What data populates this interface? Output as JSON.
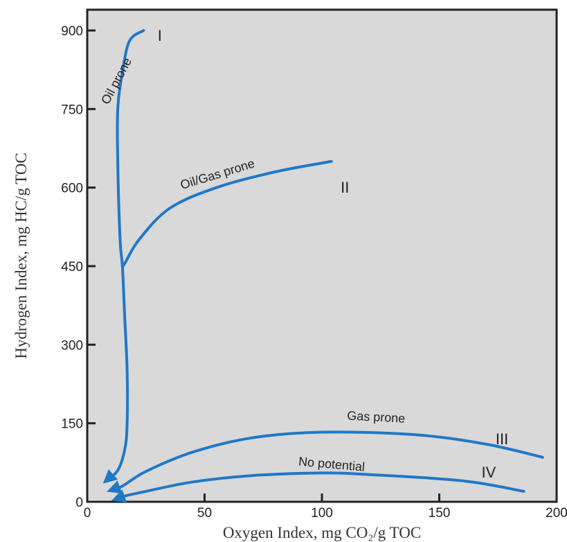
{
  "chart_data": {
    "type": "line",
    "title": "",
    "xlabel": "Oxygen Index, mg CO₂/g TOC",
    "ylabel": "Hydrogen Index, mg HC/g TOC",
    "xlim": [
      0,
      200
    ],
    "ylim": [
      0,
      900
    ],
    "x_ticks": [
      "0",
      "50",
      "100",
      "150",
      "200"
    ],
    "y_ticks": [
      "0",
      "150",
      "300",
      "450",
      "600",
      "750",
      "900"
    ],
    "grid": false,
    "background": "#d9d9d9",
    "line_color": "#1f78c8",
    "series": [
      {
        "name": "Oil prone",
        "kerogen_type": "I",
        "points": [
          [
            24,
            900
          ],
          [
            18,
            880
          ],
          [
            15,
            820
          ],
          [
            13,
            750
          ],
          [
            13,
            650
          ],
          [
            14,
            500
          ],
          [
            15,
            450
          ],
          [
            16,
            350
          ],
          [
            17,
            250
          ],
          [
            17,
            150
          ],
          [
            16,
            100
          ],
          [
            13,
            60
          ],
          [
            8,
            40
          ]
        ]
      },
      {
        "name": "Oil/Gas prone",
        "kerogen_type": "II",
        "points": [
          [
            104,
            650
          ],
          [
            80,
            630
          ],
          [
            55,
            600
          ],
          [
            35,
            560
          ],
          [
            22,
            500
          ],
          [
            16,
            455
          ],
          [
            15,
            450
          ]
        ]
      },
      {
        "name": "Gas prone",
        "kerogen_type": "III",
        "points": [
          [
            194,
            85
          ],
          [
            170,
            110
          ],
          [
            140,
            128
          ],
          [
            100,
            133
          ],
          [
            70,
            122
          ],
          [
            45,
            95
          ],
          [
            25,
            58
          ],
          [
            15,
            30
          ],
          [
            10,
            22
          ]
        ]
      },
      {
        "name": "No potential",
        "kerogen_type": "IV",
        "points": [
          [
            186,
            20
          ],
          [
            160,
            40
          ],
          [
            120,
            52
          ],
          [
            100,
            55
          ],
          [
            70,
            50
          ],
          [
            45,
            38
          ],
          [
            25,
            20
          ],
          [
            15,
            10
          ],
          [
            12,
            5
          ]
        ]
      }
    ]
  }
}
